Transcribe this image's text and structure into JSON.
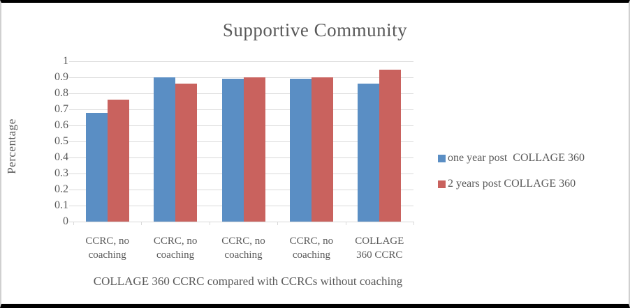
{
  "chart_data": {
    "type": "bar",
    "title": "Supportive Community",
    "ylabel": "Percentage",
    "xlabel": "COLLAGE 360 CCRC compared with CCRCs without coaching",
    "categories": [
      "CCRC, no coaching",
      "CCRC, no coaching",
      "CCRC, no coaching",
      "CCRC, no coaching",
      "COLLAGE 360 CCRC"
    ],
    "series": [
      {
        "name": "one year post  COLLAGE 360",
        "color": "#5a8ec4",
        "values": [
          0.68,
          0.9,
          0.89,
          0.89,
          0.86
        ]
      },
      {
        "name": "2 years post COLLAGE 360",
        "color": "#c9625e",
        "values": [
          0.76,
          0.86,
          0.9,
          0.9,
          0.95
        ]
      }
    ],
    "ylim": [
      0,
      1
    ],
    "ytick_step": 0.1,
    "ytick_labels": [
      "0",
      "0.1",
      "0.2",
      "0.3",
      "0.4",
      "0.5",
      "0.6",
      "0.7",
      "0.8",
      "0.9",
      "1"
    ],
    "grid": true,
    "legend_position": "right"
  },
  "colors": {
    "text": "#595959",
    "gridline": "#d9d9d9",
    "bar_blue": "#5a8ec4",
    "bar_red": "#c9625e",
    "frame_band": "#000000",
    "frame_side": "#d0d0d0"
  }
}
